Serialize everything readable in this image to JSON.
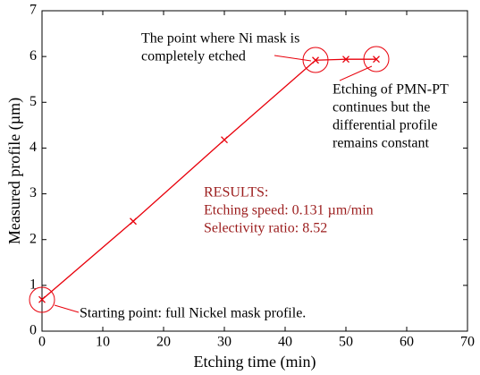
{
  "chart_data": {
    "type": "line",
    "x": [
      0,
      15,
      30,
      45,
      50,
      55
    ],
    "values": [
      0.69,
      2.4,
      4.18,
      5.92,
      5.94,
      5.94
    ],
    "color": "#e8000b",
    "xlabel": "Etching time (min)",
    "ylabel": "Measured profile (µm)",
    "xlim": [
      0,
      70
    ],
    "xticks": [
      0,
      10,
      20,
      30,
      40,
      50,
      60,
      70
    ],
    "ylim": [
      0,
      7
    ],
    "yticks": [
      0,
      1,
      2,
      3,
      4,
      5,
      6,
      7
    ],
    "annotations": [
      {
        "lines": [
          "The point where Ni mask is",
          "completely etched"
        ]
      },
      {
        "lines": [
          "Etching of PMN-PT",
          "continues but the",
          "differential profile",
          "remains constant"
        ]
      },
      {
        "lines": [
          "RESULTS:",
          "Etching speed: 0.131 µm/min",
          "Selectivity ratio: 8.52"
        ],
        "color": "#9b1c1c"
      },
      {
        "lines": [
          "Starting point: full Nickel mask profile."
        ]
      }
    ]
  }
}
